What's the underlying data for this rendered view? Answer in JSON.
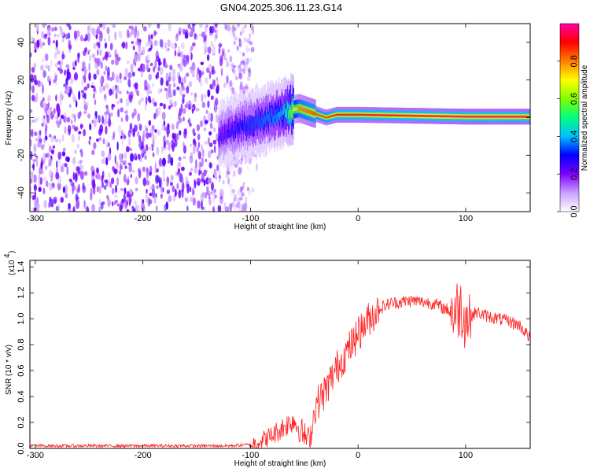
{
  "title": "GN04.2025.306.11.23.G14",
  "chart_data": [
    {
      "type": "heatmap",
      "name": "spectrogram",
      "xlabel": "Height of straight line (km)",
      "ylabel": "Frequency (Hz)",
      "xlim": [
        -305,
        160
      ],
      "ylim": [
        -50,
        50
      ],
      "x_ticks": [
        -300,
        -200,
        -100,
        0,
        100
      ],
      "y_ticks": [
        -40,
        -20,
        0,
        20,
        40
      ],
      "grid": false,
      "colorbar": {
        "label": "Normalized spectral amplitude",
        "range": [
          0,
          1
        ],
        "ticks": [
          0.0,
          0.2,
          0.4,
          0.6,
          0.8
        ],
        "colormap": [
          "#ffffff",
          "#c8a0ff",
          "#8000ff",
          "#0000ff",
          "#00c0ff",
          "#00ff80",
          "#80ff00",
          "#ffff00",
          "#ff8000",
          "#ff0000",
          "#ff00a0"
        ]
      },
      "features": {
        "noise_region_x": [
          -305,
          -100
        ],
        "noise_amplitude": [
          0.05,
          0.25
        ],
        "signal_track": [
          {
            "x": -130,
            "y": -10,
            "amp": 0.25
          },
          {
            "x": -110,
            "y": -5,
            "amp": 0.3
          },
          {
            "x": -90,
            "y": -2,
            "amp": 0.35
          },
          {
            "x": -70,
            "y": 3,
            "amp": 0.4
          },
          {
            "x": -55,
            "y": 5,
            "amp": 0.8
          },
          {
            "x": -40,
            "y": 2,
            "amp": 0.85
          },
          {
            "x": -30,
            "y": 0,
            "amp": 0.85
          },
          {
            "x": -20,
            "y": 1.5,
            "amp": 0.9
          },
          {
            "x": 0,
            "y": 1.5,
            "amp": 0.9
          },
          {
            "x": 50,
            "y": 1,
            "amp": 0.92
          },
          {
            "x": 100,
            "y": 0.5,
            "amp": 0.95
          },
          {
            "x": 160,
            "y": 0.5,
            "amp": 0.95
          }
        ]
      }
    },
    {
      "type": "line",
      "name": "snr",
      "xlabel": "Height of straight line (km)",
      "ylabel": "SNR (10 * v/v)",
      "y_multiplier": "(x10",
      "y_multiplier_exp": "4",
      "xlim": [
        -305,
        160
      ],
      "ylim": [
        0,
        1.45
      ],
      "x_ticks": [
        -300,
        -200,
        -100,
        0,
        100
      ],
      "y_ticks": [
        0.0,
        0.2,
        0.4,
        0.6,
        0.8,
        1.0,
        1.2,
        1.4
      ],
      "grid": false,
      "series": [
        {
          "color": "#ff2020",
          "x": [
            -305,
            -250,
            -200,
            -150,
            -120,
            -100,
            -90,
            -80,
            -70,
            -60,
            -50,
            -45,
            -40,
            -30,
            -20,
            -10,
            0,
            10,
            20,
            30,
            40,
            50,
            60,
            70,
            80,
            90,
            95,
            100,
            110,
            120,
            130,
            140,
            150,
            160
          ],
          "y": [
            0.02,
            0.02,
            0.02,
            0.02,
            0.02,
            0.03,
            0.06,
            0.1,
            0.16,
            0.22,
            0.1,
            0.05,
            0.32,
            0.45,
            0.62,
            0.75,
            0.88,
            1.0,
            1.08,
            1.12,
            1.13,
            1.14,
            1.13,
            1.12,
            1.08,
            1.05,
            1.1,
            1.0,
            1.05,
            1.02,
            1.0,
            0.98,
            0.95,
            0.85
          ]
        }
      ]
    }
  ]
}
